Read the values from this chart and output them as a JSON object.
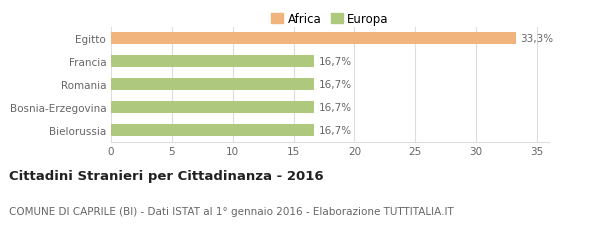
{
  "categories": [
    "Bielorussia",
    "Bosnia-Erzegovina",
    "Romania",
    "Francia",
    "Egitto"
  ],
  "values": [
    16.7,
    16.7,
    16.7,
    16.7,
    33.3
  ],
  "labels": [
    "16,7%",
    "16,7%",
    "16,7%",
    "16,7%",
    "33,3%"
  ],
  "colors": [
    "#aec97e",
    "#aec97e",
    "#aec97e",
    "#aec97e",
    "#f0b47c"
  ],
  "legend_items": [
    {
      "label": "Africa",
      "color": "#f0b47c"
    },
    {
      "label": "Europa",
      "color": "#aec97e"
    }
  ],
  "xlim": [
    0,
    36
  ],
  "xticks": [
    0,
    5,
    10,
    15,
    20,
    25,
    30,
    35
  ],
  "title": "Cittadini Stranieri per Cittadinanza - 2016",
  "subtitle": "COMUNE DI CAPRILE (BI) - Dati ISTAT al 1° gennaio 2016 - Elaborazione TUTTITALIA.IT",
  "title_fontsize": 9.5,
  "subtitle_fontsize": 7.5,
  "bar_height": 0.55,
  "background_color": "#ffffff",
  "grid_color": "#dddddd",
  "label_fontsize": 7.5,
  "tick_fontsize": 7.5,
  "category_fontsize": 7.5
}
